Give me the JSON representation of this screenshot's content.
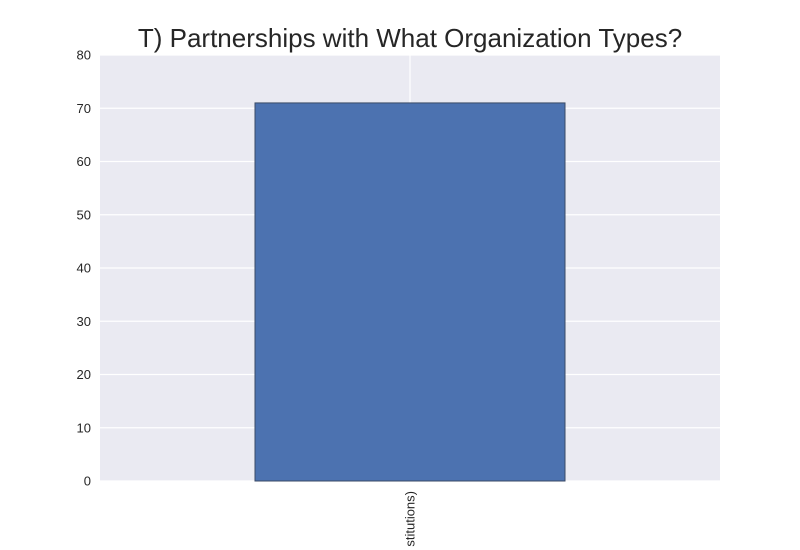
{
  "chart_data": {
    "type": "bar",
    "title": "T) Partnerships with What Organization Types?",
    "xlabel": "",
    "ylabel": "",
    "categories": [
      "stitutions)"
    ],
    "values": [
      71
    ],
    "ylim": [
      0,
      80
    ],
    "yticks": [
      0,
      10,
      20,
      30,
      40,
      50,
      60,
      70,
      80
    ],
    "grid": true,
    "colors": {
      "bar": "#4c72b0",
      "bar_edge": "#3a4a66",
      "plot_background": "#eaeaf2",
      "grid": "#ffffff",
      "text": "#262626"
    }
  }
}
